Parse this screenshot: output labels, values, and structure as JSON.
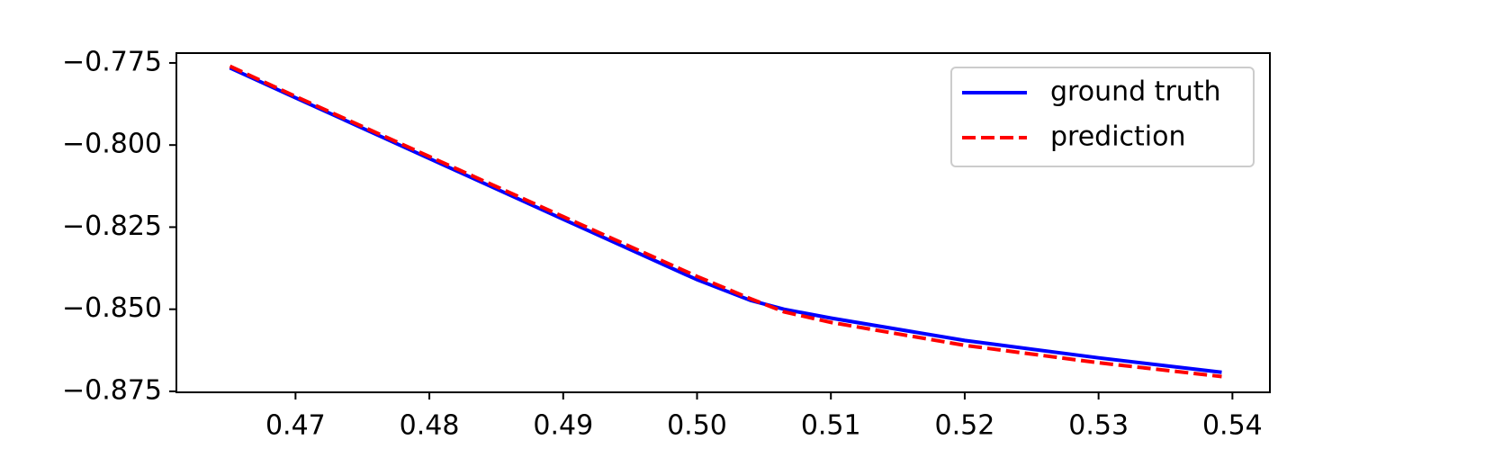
{
  "chart_data": {
    "type": "line",
    "x": [
      0.4651,
      0.47,
      0.48,
      0.49,
      0.5,
      0.504,
      0.5065,
      0.51,
      0.52,
      0.53,
      0.5392
    ],
    "series": [
      {
        "name": "ground truth",
        "color": "#0000ff",
        "linestyle": "solid",
        "values": [
          -0.7765,
          -0.7856,
          -0.8041,
          -0.8226,
          -0.841,
          -0.8473,
          -0.85,
          -0.8527,
          -0.8595,
          -0.8648,
          -0.8692
        ]
      },
      {
        "name": "prediction",
        "color": "#ff0000",
        "linestyle": "dashed",
        "values": [
          -0.776,
          -0.7852,
          -0.8035,
          -0.8218,
          -0.84,
          -0.8468,
          -0.8508,
          -0.854,
          -0.861,
          -0.8663,
          -0.8705
        ]
      }
    ],
    "xlim": [
      0.4611,
      0.5428
    ],
    "ylim": [
      -0.8753,
      -0.772
    ],
    "xticks": [
      0.47,
      0.48,
      0.49,
      {
        "value": 0.5,
        "label": "0.50"
      },
      0.51,
      0.52,
      0.53,
      0.54
    ],
    "yticks": [
      {
        "value": -0.775,
        "label": "−0.775"
      },
      {
        "value": -0.8,
        "label": "−0.800"
      },
      {
        "value": -0.825,
        "label": "−0.825"
      },
      {
        "value": -0.85,
        "label": "−0.850"
      },
      {
        "value": -0.875,
        "label": "−0.875"
      }
    ],
    "legend": "upper right",
    "grid": false
  }
}
